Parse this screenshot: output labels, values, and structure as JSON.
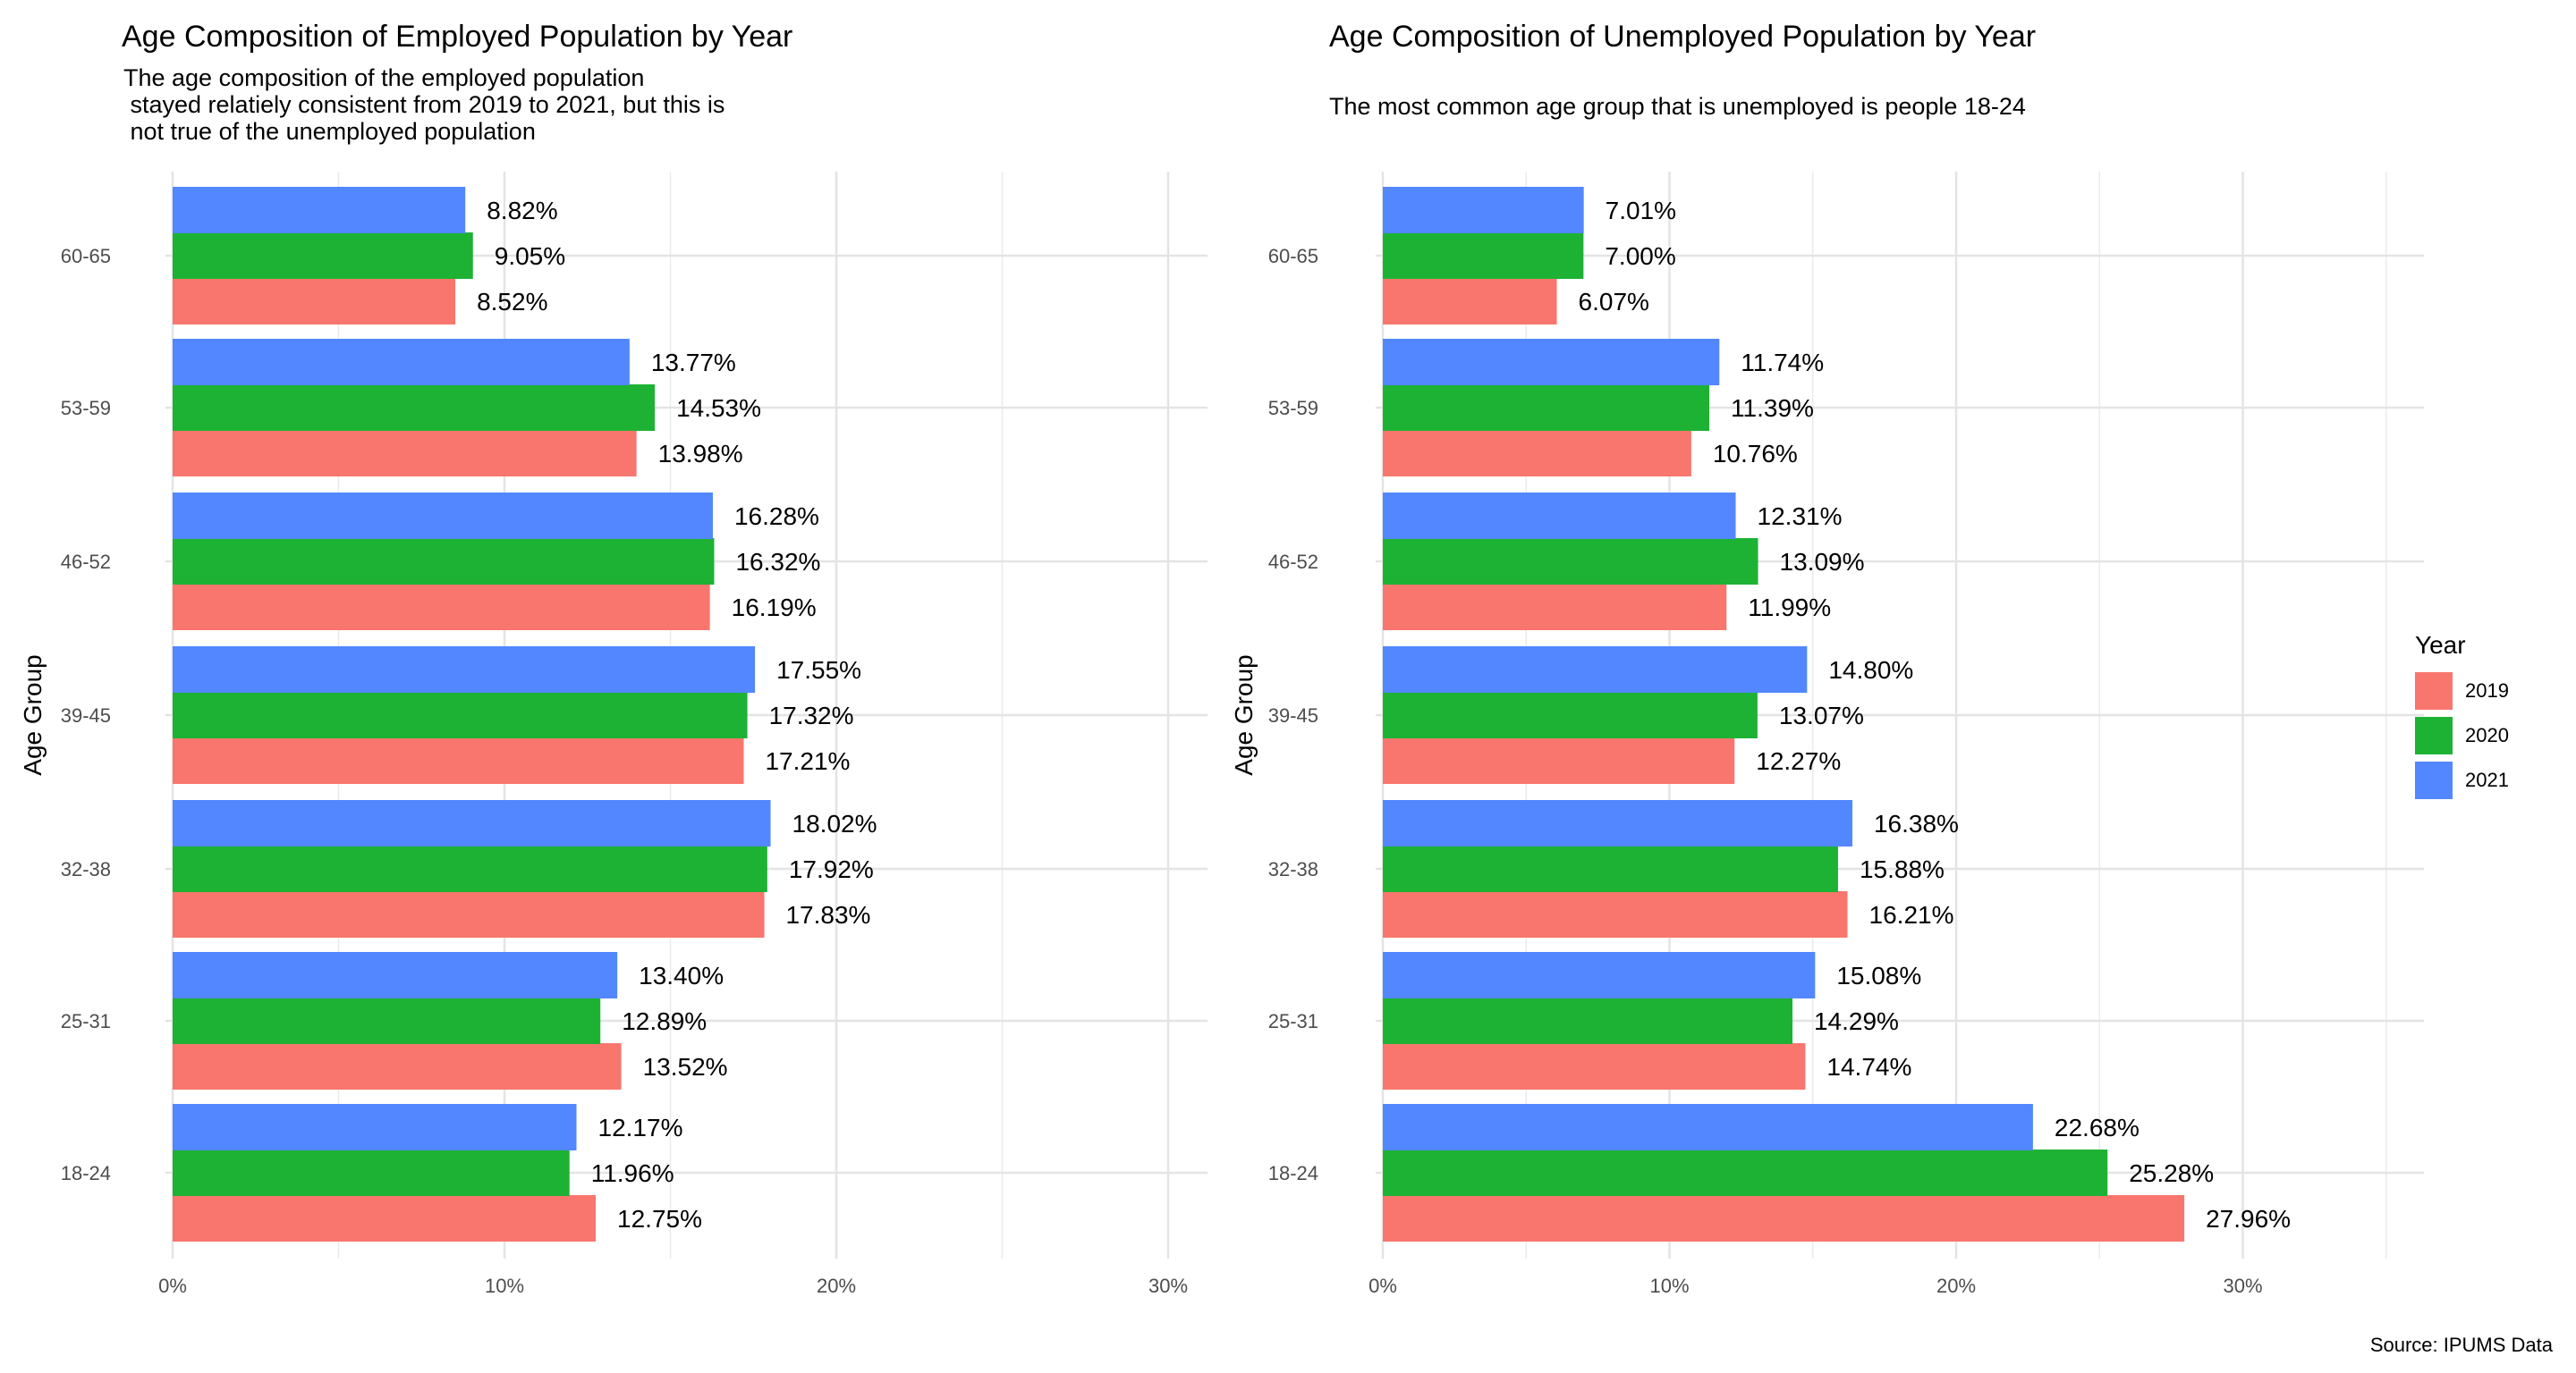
{
  "chart_data": [
    {
      "type": "bar",
      "orientation": "horizontal",
      "title": "Age Composition of Employed Population by Year",
      "subtitle": "The age composition of the employed population\n stayed relatiely consistent from 2019 to 2021, but this is\n not true of the unemployed population",
      "xlabel": "",
      "ylabel": "Age Group",
      "categories": [
        "18-24",
        "25-31",
        "32-38",
        "39-45",
        "46-52",
        "53-59",
        "60-65"
      ],
      "x_ticks": [
        "0%",
        "10%",
        "20%",
        "30%"
      ],
      "xlim": [
        0,
        31.5
      ],
      "grid": true,
      "series": [
        {
          "name": "2019",
          "values": [
            12.75,
            13.52,
            17.83,
            17.21,
            16.19,
            13.98,
            8.52
          ],
          "labels": [
            "12.75%",
            "13.52%",
            "17.83%",
            "17.21%",
            "16.19%",
            "13.98%",
            "8.52%"
          ]
        },
        {
          "name": "2020",
          "values": [
            11.96,
            12.89,
            17.92,
            17.32,
            16.32,
            14.53,
            9.05
          ],
          "labels": [
            "11.96%",
            "12.89%",
            "17.92%",
            "17.32%",
            "16.32%",
            "14.53%",
            "9.05%"
          ]
        },
        {
          "name": "2021",
          "values": [
            12.17,
            13.4,
            18.02,
            17.55,
            16.28,
            13.77,
            8.82
          ],
          "labels": [
            "12.17%",
            "13.40%",
            "18.02%",
            "17.55%",
            "16.28%",
            "13.77%",
            "8.82%"
          ]
        }
      ]
    },
    {
      "type": "bar",
      "orientation": "horizontal",
      "title": "Age Composition of Unemployed Population by Year",
      "subtitle": "The most common age group that is unemployed is people 18-24",
      "xlabel": "",
      "ylabel": "Age Group",
      "categories": [
        "18-24",
        "25-31",
        "32-38",
        "39-45",
        "46-52",
        "53-59",
        "60-65"
      ],
      "x_ticks": [
        "0%",
        "10%",
        "20%",
        "30%"
      ],
      "xlim": [
        0,
        36.5
      ],
      "grid": true,
      "series": [
        {
          "name": "2019",
          "values": [
            27.96,
            14.74,
            16.21,
            12.27,
            11.99,
            10.76,
            6.07
          ],
          "labels": [
            "27.96%",
            "14.74%",
            "16.21%",
            "12.27%",
            "11.99%",
            "10.76%",
            "6.07%"
          ]
        },
        {
          "name": "2020",
          "values": [
            25.28,
            14.29,
            15.88,
            13.07,
            13.09,
            11.39,
            7.0
          ],
          "labels": [
            "25.28%",
            "14.29%",
            "15.88%",
            "13.07%",
            "13.09%",
            "11.39%",
            "7.00%"
          ]
        },
        {
          "name": "2021",
          "values": [
            22.68,
            15.08,
            16.38,
            14.8,
            12.31,
            11.74,
            7.01
          ],
          "labels": [
            "22.68%",
            "15.08%",
            "16.38%",
            "14.80%",
            "12.31%",
            "11.74%",
            "7.01%"
          ]
        }
      ]
    }
  ],
  "legend": {
    "title": "Year",
    "placement": "right",
    "items": [
      {
        "label": "2019",
        "color": "#F8766D"
      },
      {
        "label": "2020",
        "color": "#1DB233"
      },
      {
        "label": "2021",
        "color": "#5287FF"
      }
    ]
  },
  "source": "Source: IPUMS Data"
}
